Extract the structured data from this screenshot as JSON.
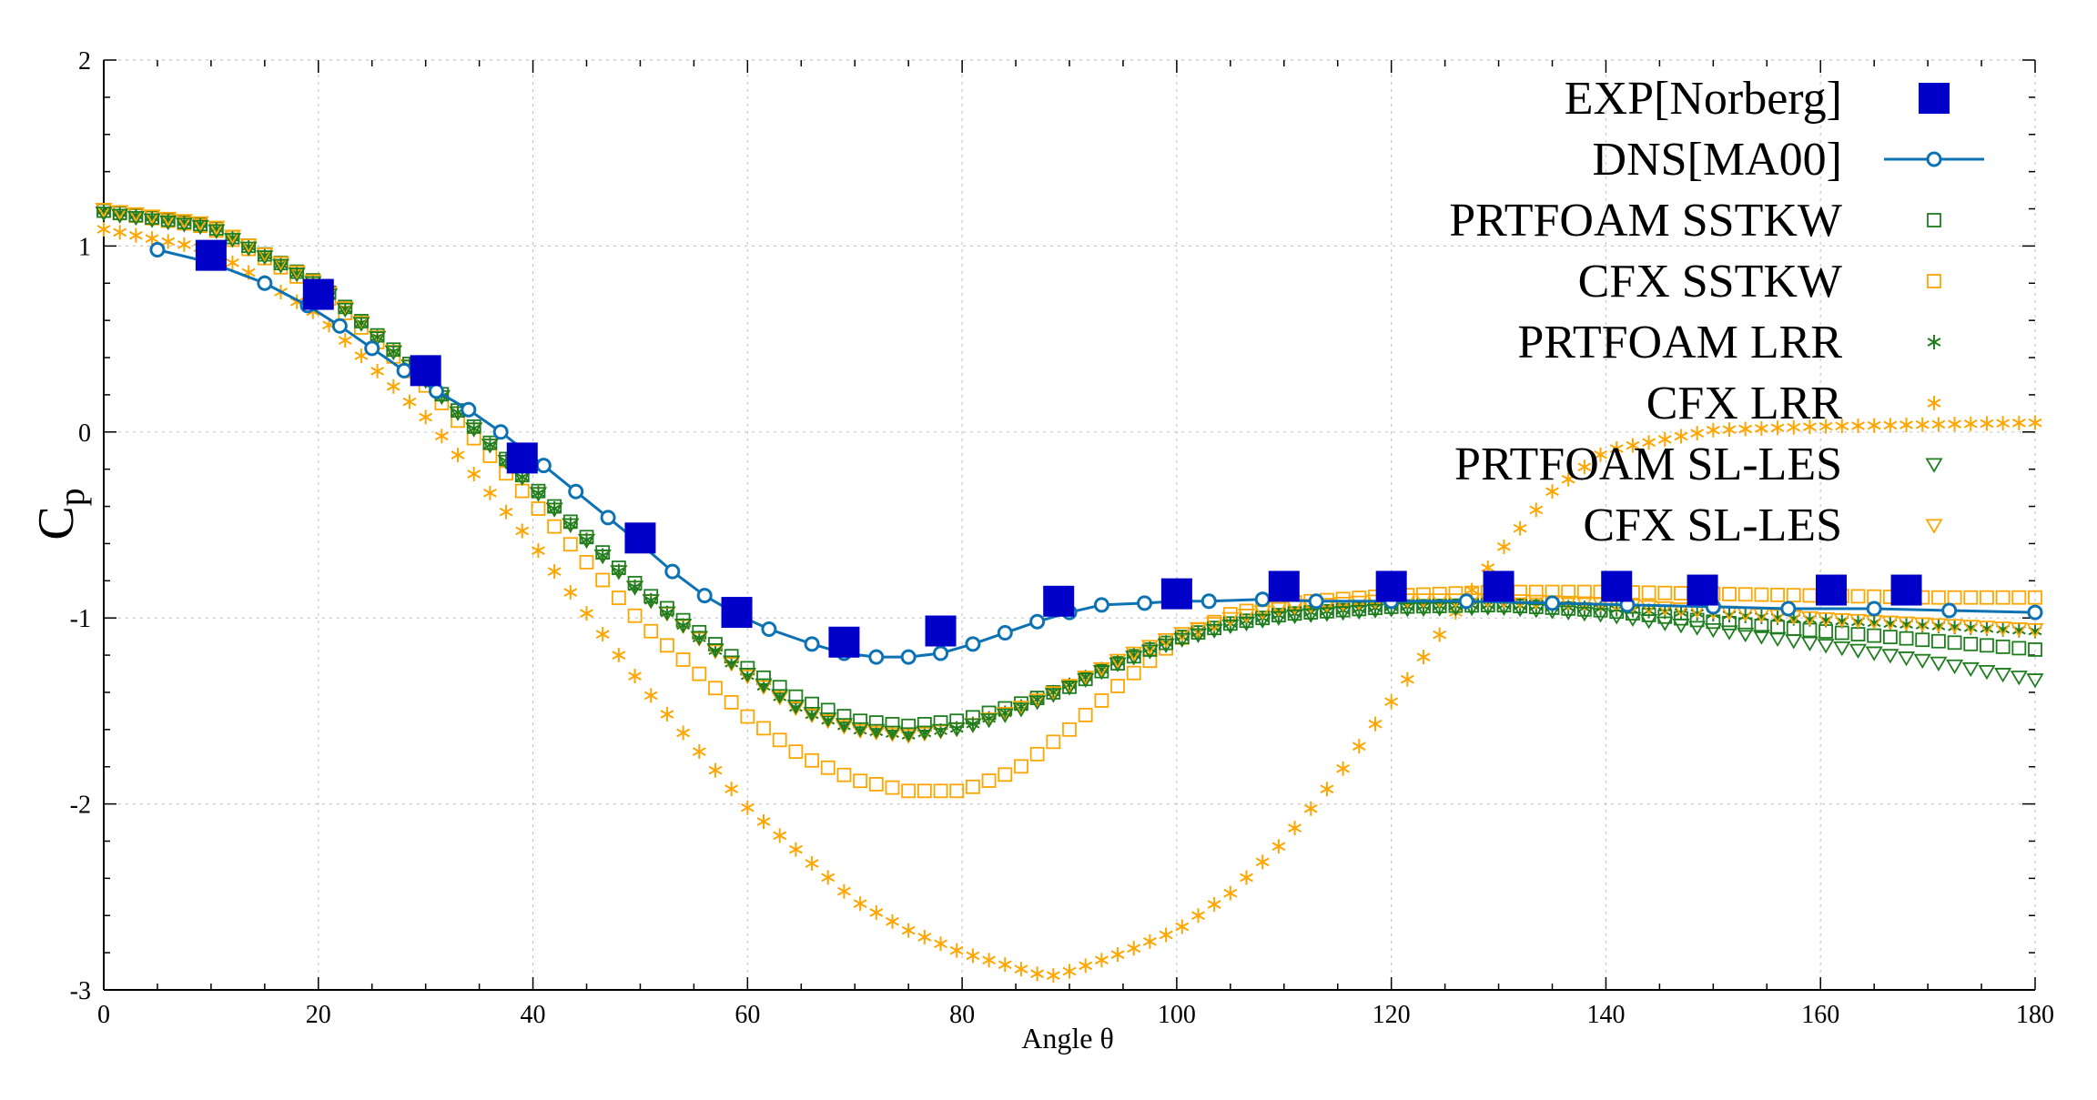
{
  "chart_data": {
    "type": "line",
    "title": "",
    "xlabel": "Angle θ",
    "ylabel": "Cp",
    "ylabel_main": "C",
    "ylabel_sub": "p",
    "xlim": [
      0,
      180
    ],
    "ylim": [
      -3,
      2
    ],
    "xticks": [
      0,
      20,
      40,
      60,
      80,
      100,
      120,
      140,
      160,
      180
    ],
    "yticks": [
      -3,
      -2,
      -1,
      0,
      1,
      2
    ],
    "grid": true,
    "legend_position": "top-right",
    "series": [
      {
        "name": "EXP[Norberg]",
        "kind": "markers",
        "marker": "filled-square",
        "color": "#0000c8",
        "x": [
          10,
          20,
          30,
          39,
          50,
          59,
          69,
          78,
          89,
          100,
          110,
          120,
          130,
          141,
          149,
          161,
          168
        ],
        "y": [
          0.95,
          0.74,
          0.33,
          -0.14,
          -0.57,
          -0.97,
          -1.13,
          -1.07,
          -0.91,
          -0.87,
          -0.83,
          -0.83,
          -0.83,
          -0.83,
          -0.85,
          -0.85,
          -0.85
        ]
      },
      {
        "name": "DNS[MA00]",
        "kind": "line-markers",
        "marker": "open-circle",
        "color": "#0c72b4",
        "x": [
          5,
          10,
          15,
          19,
          22,
          25,
          28,
          31,
          34,
          37,
          41,
          44,
          47,
          50,
          53,
          56,
          59,
          62,
          66,
          69,
          72,
          75,
          78,
          81,
          84,
          87,
          90,
          93,
          97,
          100,
          103,
          108,
          113,
          120,
          127,
          135,
          142,
          150,
          157,
          165,
          172,
          180
        ],
        "y": [
          0.98,
          0.91,
          0.8,
          0.68,
          0.57,
          0.45,
          0.33,
          0.22,
          0.12,
          0.0,
          -0.18,
          -0.32,
          -0.46,
          -0.6,
          -0.75,
          -0.88,
          -0.98,
          -1.06,
          -1.14,
          -1.19,
          -1.21,
          -1.21,
          -1.19,
          -1.14,
          -1.08,
          -1.02,
          -0.97,
          -0.93,
          -0.92,
          -0.91,
          -0.91,
          -0.9,
          -0.91,
          -0.91,
          -0.91,
          -0.92,
          -0.93,
          -0.94,
          -0.95,
          -0.95,
          -0.96,
          -0.97
        ]
      },
      {
        "name": "PRTFOAM SSTKW",
        "kind": "markers",
        "marker": "open-square",
        "color": "#1e7d1e",
        "x": [
          0,
          10,
          20,
          30,
          40,
          50,
          60,
          65,
          70,
          75,
          80,
          85,
          90,
          95,
          100,
          105,
          110,
          120,
          130,
          140,
          150,
          160,
          170,
          180
        ],
        "y": [
          1.19,
          1.11,
          0.8,
          0.29,
          -0.29,
          -0.84,
          -1.27,
          -1.44,
          -1.55,
          -1.58,
          -1.55,
          -1.47,
          -1.37,
          -1.23,
          -1.11,
          -1.03,
          -0.98,
          -0.94,
          -0.93,
          -0.96,
          -1.02,
          -1.07,
          -1.12,
          -1.17
        ]
      },
      {
        "name": "CFX SSTKW",
        "kind": "markers",
        "marker": "open-square",
        "color": "#ffa500",
        "x": [
          0,
          10,
          20,
          30,
          40,
          50,
          60,
          65,
          70,
          75,
          80,
          85,
          90,
          95,
          100,
          105,
          110,
          120,
          130,
          140,
          150,
          160,
          170,
          180
        ],
        "y": [
          1.19,
          1.1,
          0.77,
          0.25,
          -0.38,
          -1.02,
          -1.53,
          -1.74,
          -1.87,
          -1.93,
          -1.93,
          -1.82,
          -1.6,
          -1.34,
          -1.12,
          -0.98,
          -0.92,
          -0.88,
          -0.86,
          -0.86,
          -0.87,
          -0.88,
          -0.89,
          -0.89
        ]
      },
      {
        "name": "PRTFOAM LRR",
        "kind": "markers",
        "marker": "asterisk",
        "color": "#1e7d1e",
        "x": [
          0,
          10,
          20,
          30,
          40,
          50,
          60,
          65,
          70,
          75,
          80,
          85,
          90,
          95,
          100,
          105,
          110,
          120,
          130,
          140,
          150,
          160,
          170,
          180
        ],
        "y": [
          1.19,
          1.11,
          0.79,
          0.28,
          -0.3,
          -0.86,
          -1.31,
          -1.5,
          -1.6,
          -1.63,
          -1.59,
          -1.49,
          -1.36,
          -1.22,
          -1.11,
          -1.03,
          -0.98,
          -0.94,
          -0.93,
          -0.95,
          -0.98,
          -1.01,
          -1.04,
          -1.07
        ]
      },
      {
        "name": "CFX LRR",
        "kind": "markers",
        "marker": "asterisk",
        "color": "#ffa500",
        "x": [
          0,
          10,
          20,
          30,
          40,
          50,
          60,
          70,
          75,
          80,
          85,
          88,
          90,
          95,
          100,
          105,
          110,
          115,
          120,
          125,
          130,
          135,
          140,
          150,
          160,
          170,
          180
        ],
        "y": [
          1.09,
          0.98,
          0.63,
          0.08,
          -0.6,
          -1.35,
          -2.02,
          -2.52,
          -2.68,
          -2.8,
          -2.88,
          -2.93,
          -2.9,
          -2.8,
          -2.68,
          -2.48,
          -2.2,
          -1.85,
          -1.45,
          -1.05,
          -0.65,
          -0.32,
          -0.1,
          0.01,
          0.03,
          0.04,
          0.05
        ]
      },
      {
        "name": "PRTFOAM SL-LES",
        "kind": "markers",
        "marker": "open-triangle-down",
        "color": "#1e7d1e",
        "x": [
          0,
          10,
          20,
          30,
          40,
          50,
          60,
          65,
          70,
          75,
          80,
          85,
          90,
          95,
          100,
          105,
          110,
          120,
          130,
          140,
          150,
          160,
          170,
          180
        ],
        "y": [
          1.18,
          1.1,
          0.79,
          0.28,
          -0.3,
          -0.86,
          -1.3,
          -1.49,
          -1.59,
          -1.62,
          -1.59,
          -1.5,
          -1.37,
          -1.23,
          -1.12,
          -1.04,
          -0.99,
          -0.95,
          -0.94,
          -0.98,
          -1.06,
          -1.14,
          -1.23,
          -1.33
        ]
      },
      {
        "name": "CFX SL-LES",
        "kind": "markers",
        "marker": "open-triangle-down",
        "color": "#ffa500",
        "x": [
          0,
          10,
          20,
          30,
          40,
          50,
          60,
          65,
          70,
          75,
          80,
          85,
          90,
          95,
          100,
          105,
          110,
          120,
          130,
          140,
          150,
          160,
          170,
          180
        ],
        "y": [
          1.2,
          1.12,
          0.8,
          0.28,
          -0.3,
          -0.86,
          -1.31,
          -1.5,
          -1.6,
          -1.63,
          -1.59,
          -1.49,
          -1.36,
          -1.21,
          -1.09,
          -1.0,
          -0.94,
          -0.9,
          -0.9,
          -0.92,
          -0.96,
          -1.0,
          -1.03,
          -1.06
        ]
      }
    ]
  }
}
